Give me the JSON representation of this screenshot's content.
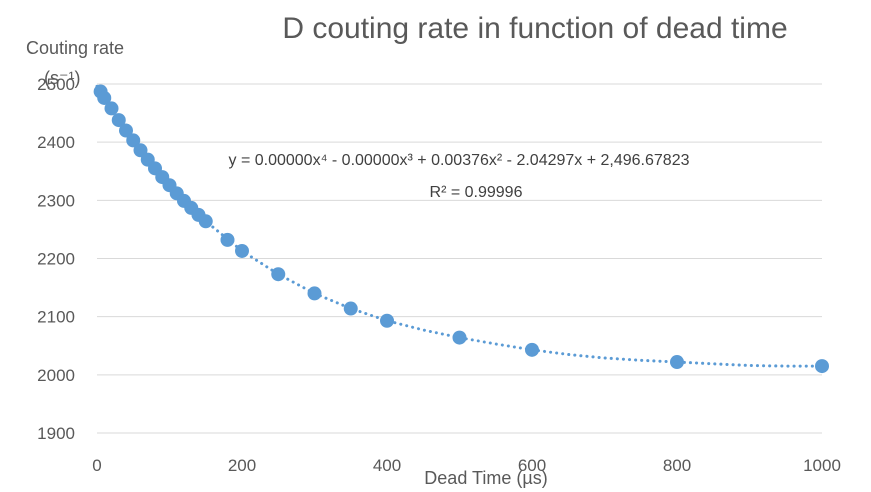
{
  "chart_data": {
    "type": "scatter",
    "title": "D couting rate in function of dead time",
    "xlabel": "Dead Time (µs)",
    "ylabel_line1": "Couting rate",
    "ylabel_line2": "(s⁻¹)",
    "xlim": [
      0,
      1000
    ],
    "ylim": [
      1900,
      2500
    ],
    "x_ticks": [
      0,
      200,
      400,
      600,
      800,
      1000
    ],
    "y_ticks": [
      1900,
      2000,
      2100,
      2200,
      2300,
      2400,
      2500
    ],
    "grid": "horizontal",
    "series": [
      {
        "x": [
          5,
          10,
          20,
          30,
          40,
          50,
          60,
          70,
          80,
          90,
          100,
          110,
          120,
          130,
          140,
          150,
          180,
          200,
          250,
          300,
          350,
          400,
          500,
          600,
          800,
          1000
        ],
        "y": [
          2487,
          2476,
          2458,
          2438,
          2420,
          2403,
          2386,
          2370,
          2355,
          2340,
          2326,
          2312,
          2299,
          2287,
          2275,
          2264,
          2232,
          2213,
          2173,
          2140,
          2114,
          2093,
          2064,
          2043,
          2022,
          2015
        ],
        "color": "#5b9bd5"
      }
    ],
    "trendline": {
      "type": "polynomial",
      "order": 4,
      "style": "dotted",
      "color": "#5b9bd5",
      "x": [
        0,
        50,
        100,
        150,
        200,
        250,
        300,
        350,
        400,
        450,
        500,
        550,
        600,
        650,
        700,
        750,
        800,
        850,
        900,
        950,
        1000
      ],
      "y": [
        2496,
        2403,
        2326,
        2264,
        2213,
        2173,
        2140,
        2114,
        2093,
        2077,
        2064,
        2053,
        2043,
        2035,
        2029,
        2025,
        2022,
        2019,
        2016,
        2015,
        2015
      ],
      "equation": "y = 0.00000x⁴ - 0.00000x³ + 0.00376x² - 2.04297x + 2,496.67823",
      "r_squared": "R² = 0.99996"
    }
  }
}
